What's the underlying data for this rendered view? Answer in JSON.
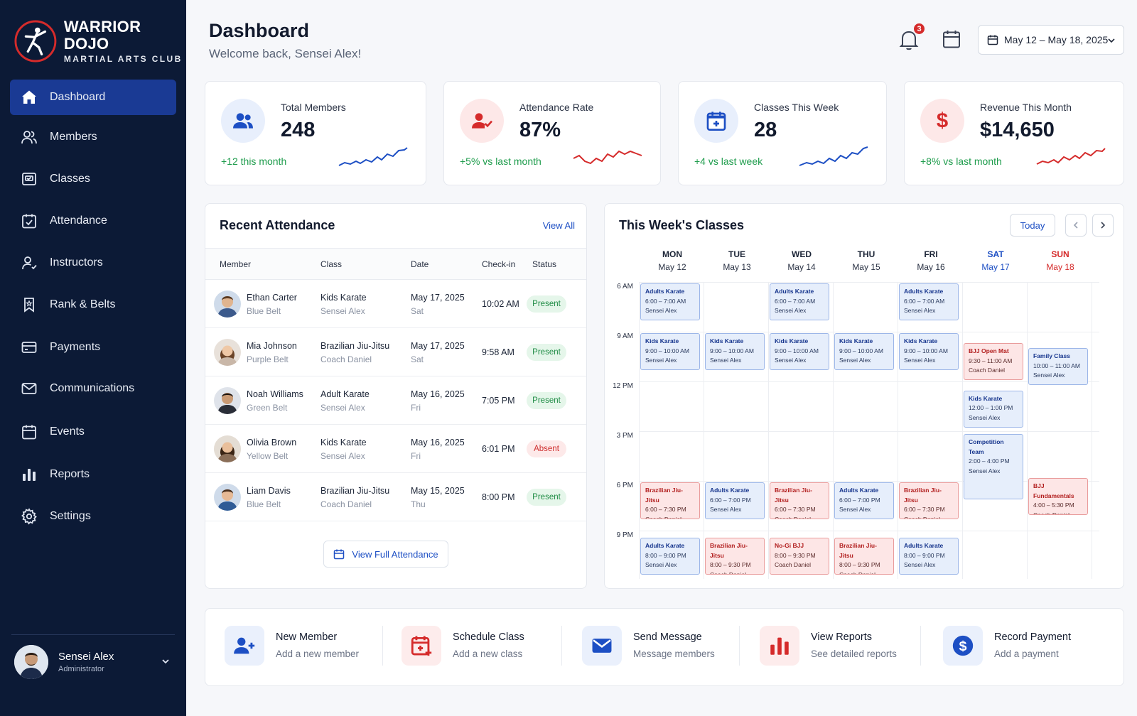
{
  "brand": {
    "name": "WARRIOR DOJO",
    "subtitle": "MARTIAL ARTS CLUB"
  },
  "nav": [
    {
      "label": "Dashboard",
      "icon": "home-icon",
      "active": true
    },
    {
      "label": "Members",
      "icon": "users-icon"
    },
    {
      "label": "Classes",
      "icon": "classes-icon"
    },
    {
      "label": "Attendance",
      "icon": "attendance-icon"
    },
    {
      "label": "Instructors",
      "icon": "instructor-icon"
    },
    {
      "label": "Rank & Belts",
      "icon": "bookmark-icon"
    },
    {
      "label": "Payments",
      "icon": "card-icon"
    },
    {
      "label": "Communications",
      "icon": "mail-icon"
    },
    {
      "label": "Events",
      "icon": "calendar-icon"
    },
    {
      "label": "Reports",
      "icon": "bar-chart-icon"
    },
    {
      "label": "Settings",
      "icon": "gear-icon"
    }
  ],
  "user": {
    "name": "Sensei Alex",
    "role": "Administrator"
  },
  "header": {
    "title": "Dashboard",
    "subtitle": "Welcome back, Sensei Alex!",
    "notifications": "3",
    "date_range": "May 12 – May 18, 2025"
  },
  "stats": [
    {
      "label": "Total Members",
      "value": "248",
      "change": "+12 this month",
      "color": "#1d4fc4",
      "bg": "#e8effc",
      "icon": "users-icon"
    },
    {
      "label": "Attendance Rate",
      "value": "87%",
      "change": "+5% vs last month",
      "color": "#d52b2b",
      "bg": "#fde8e8",
      "icon": "user-check-icon"
    },
    {
      "label": "Classes This Week",
      "value": "28",
      "change": "+4 vs last week",
      "color": "#1d4fc4",
      "bg": "#e8effc",
      "icon": "calendar-plus-icon"
    },
    {
      "label": "Revenue This Month",
      "value": "$14,650",
      "change": "+8% vs last month",
      "color": "#d52b2b",
      "bg": "#fde8e8",
      "icon": "dollar-icon"
    }
  ],
  "attendance": {
    "title": "Recent Attendance",
    "view_all": "View All",
    "columns": [
      "Member",
      "Class",
      "Date",
      "Check-in",
      "Status"
    ],
    "rows": [
      {
        "name": "Ethan Carter",
        "belt": "Blue Belt",
        "class": "Kids Karate",
        "instructor": "Sensei Alex",
        "date": "May 17, 2025",
        "day": "Sat",
        "checkin": "10:02 AM",
        "status": "Present"
      },
      {
        "name": "Mia Johnson",
        "belt": "Purple Belt",
        "class": "Brazilian Jiu-Jitsu",
        "instructor": "Coach Daniel",
        "date": "May 17, 2025",
        "day": "Sat",
        "checkin": "9:58 AM",
        "status": "Present"
      },
      {
        "name": "Noah Williams",
        "belt": "Green Belt",
        "class": "Adult Karate",
        "instructor": "Sensei Alex",
        "date": "May 16, 2025",
        "day": "Fri",
        "checkin": "7:05 PM",
        "status": "Present"
      },
      {
        "name": "Olivia Brown",
        "belt": "Yellow Belt",
        "class": "Kids Karate",
        "instructor": "Sensei Alex",
        "date": "May 16, 2025",
        "day": "Fri",
        "checkin": "6:01 PM",
        "status": "Absent"
      },
      {
        "name": "Liam Davis",
        "belt": "Blue Belt",
        "class": "Brazilian Jiu-Jitsu",
        "instructor": "Coach Daniel",
        "date": "May 15, 2025",
        "day": "Thu",
        "checkin": "8:00 PM",
        "status": "Present"
      }
    ],
    "full_button": "View Full Attendance"
  },
  "week": {
    "title": "This Week's Classes",
    "today": "Today",
    "days": [
      {
        "name": "MON",
        "date": "May 12"
      },
      {
        "name": "TUE",
        "date": "May 13"
      },
      {
        "name": "WED",
        "date": "May 14"
      },
      {
        "name": "THU",
        "date": "May 15"
      },
      {
        "name": "FRI",
        "date": "May 16"
      },
      {
        "name": "SAT",
        "date": "May 17"
      },
      {
        "name": "SUN",
        "date": "May 18"
      }
    ],
    "times": [
      "6 AM",
      "9 AM",
      "12 PM",
      "3 PM",
      "6 PM",
      "9 PM"
    ],
    "events": [
      {
        "day": 0,
        "slot": 0,
        "name": "Adults Karate",
        "time": "6:00 – 7:00 AM",
        "who": "Sensei Alex",
        "color": "blue"
      },
      {
        "day": 2,
        "slot": 0,
        "name": "Adults Karate",
        "time": "6:00 – 7:00 AM",
        "who": "Sensei Alex",
        "color": "blue"
      },
      {
        "day": 4,
        "slot": 0,
        "name": "Adults Karate",
        "time": "6:00 – 7:00 AM",
        "who": "Sensei Alex",
        "color": "blue"
      },
      {
        "day": 0,
        "slot": 1,
        "name": "Kids Karate",
        "time": "9:00 – 10:00 AM",
        "who": "Sensei Alex",
        "color": "blue"
      },
      {
        "day": 1,
        "slot": 1,
        "name": "Kids Karate",
        "time": "9:00 – 10:00 AM",
        "who": "Sensei Alex",
        "color": "blue"
      },
      {
        "day": 2,
        "slot": 1,
        "name": "Kids Karate",
        "time": "9:00 – 10:00 AM",
        "who": "Sensei Alex",
        "color": "blue"
      },
      {
        "day": 3,
        "slot": 1,
        "name": "Kids Karate",
        "time": "9:00 – 10:00 AM",
        "who": "Sensei Alex",
        "color": "blue"
      },
      {
        "day": 4,
        "slot": 1,
        "name": "Kids Karate",
        "time": "9:00 – 10:00 AM",
        "who": "Sensei Alex",
        "color": "blue"
      },
      {
        "day": 5,
        "slot": 1.2,
        "name": "BJJ Open Mat",
        "time": "9:30 – 11:00 AM",
        "who": "Coach Daniel",
        "color": "red"
      },
      {
        "day": 6,
        "slot": 1.3,
        "name": "Family Class",
        "time": "10:00 – 11:00 AM",
        "who": "Sensei Alex",
        "color": "blue"
      },
      {
        "day": 5,
        "slot": 2.15,
        "name": "Kids Karate",
        "time": "12:00 – 1:00 PM",
        "who": "Sensei Alex",
        "color": "blue"
      },
      {
        "day": 5,
        "slot": 3.03,
        "name": "Competition Team",
        "time": "2:00 – 4:00 PM",
        "who": "Sensei Alex",
        "color": "blue",
        "tall": true
      },
      {
        "day": 0,
        "slot": 4,
        "name": "Brazilian Jiu-Jitsu",
        "time": "6:00 – 7:30 PM",
        "who": "Coach Daniel",
        "color": "red"
      },
      {
        "day": 1,
        "slot": 4,
        "name": "Adults Karate",
        "time": "6:00 – 7:00 PM",
        "who": "Sensei Alex",
        "color": "blue"
      },
      {
        "day": 2,
        "slot": 4,
        "name": "Brazilian Jiu-Jitsu",
        "time": "6:00 – 7:30 PM",
        "who": "Coach Daniel",
        "color": "red"
      },
      {
        "day": 3,
        "slot": 4,
        "name": "Adults Karate",
        "time": "6:00 – 7:00 PM",
        "who": "Sensei Alex",
        "color": "blue"
      },
      {
        "day": 4,
        "slot": 4,
        "name": "Brazilian Jiu-Jitsu",
        "time": "6:00 – 7:30 PM",
        "who": "Coach Daniel",
        "color": "red"
      },
      {
        "day": 6,
        "slot": 3.92,
        "name": "BJJ Fundamentals",
        "time": "4:00 – 5:30 PM",
        "who": "Coach Daniel",
        "color": "red"
      },
      {
        "day": 0,
        "slot": 5.12,
        "name": "Adults Karate",
        "time": "8:00 – 9:00 PM",
        "who": "Sensei Alex",
        "color": "blue"
      },
      {
        "day": 1,
        "slot": 5.12,
        "name": "Brazilian Jiu-Jitsu",
        "time": "8:00 – 9:30 PM",
        "who": "Coach Daniel",
        "color": "red"
      },
      {
        "day": 2,
        "slot": 5.12,
        "name": "No-Gi BJJ",
        "time": "8:00 – 9:30 PM",
        "who": "Coach Daniel",
        "color": "red"
      },
      {
        "day": 3,
        "slot": 5.12,
        "name": "Brazilian Jiu-Jitsu",
        "time": "8:00 – 9:30 PM",
        "who": "Coach Daniel",
        "color": "red"
      },
      {
        "day": 4,
        "slot": 5.12,
        "name": "Adults Karate",
        "time": "8:00 – 9:00 PM",
        "who": "Sensei Alex",
        "color": "blue"
      }
    ]
  },
  "quick_actions": [
    {
      "title": "New Member",
      "sub": "Add a new member",
      "icon": "user-plus-icon",
      "color": "#1d4fc4",
      "bg": "#eaf0fc"
    },
    {
      "title": "Schedule Class",
      "sub": "Add a new class",
      "icon": "calendar-plus-icon",
      "color": "#d52b2b",
      "bg": "#fdecec"
    },
    {
      "title": "Send Message",
      "sub": "Message members",
      "icon": "mail-icon",
      "color": "#1d4fc4",
      "bg": "#eaf0fc"
    },
    {
      "title": "View Reports",
      "sub": "See detailed reports",
      "icon": "bar-chart-icon",
      "color": "#d52b2b",
      "bg": "#fdecec"
    },
    {
      "title": "Record Payment",
      "sub": "Add a payment",
      "icon": "dollar-icon",
      "color": "#1d4fc4",
      "bg": "#eaf0fc"
    }
  ]
}
